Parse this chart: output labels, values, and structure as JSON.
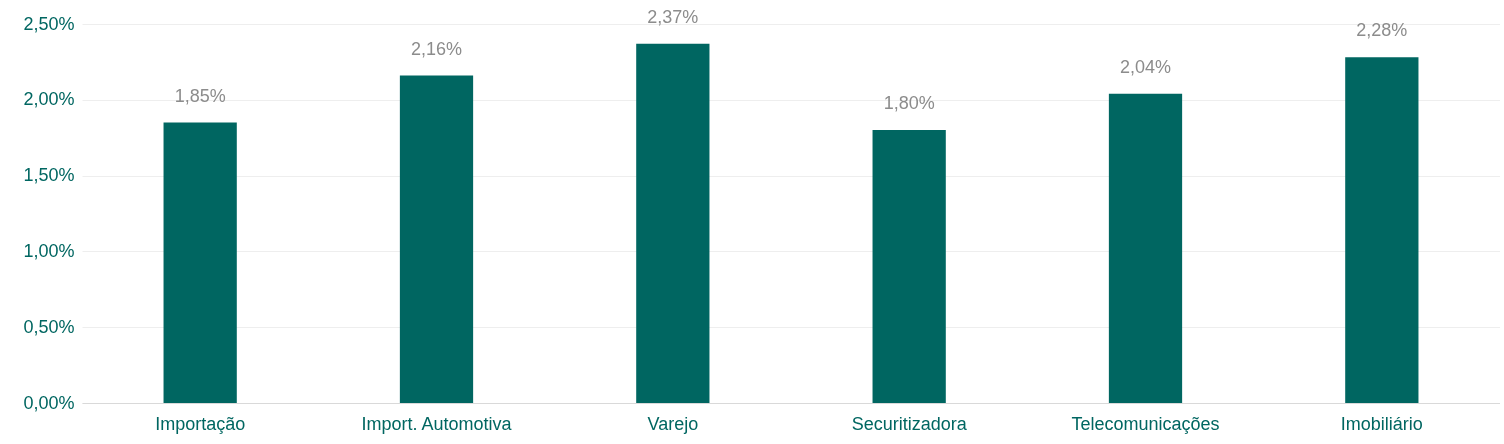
{
  "chart_data": {
    "type": "bar",
    "categories": [
      "Importação",
      "Import. Automotiva",
      "Varejo",
      "Securitizadora",
      "Telecomunicações",
      "Imobiliário"
    ],
    "values": [
      1.85,
      2.16,
      2.37,
      1.8,
      2.04,
      2.28
    ],
    "value_labels": [
      "1,85%",
      "2,16%",
      "2,37%",
      "1,80%",
      "2,04%",
      "2,28%"
    ],
    "color": "#006661",
    "ylim": [
      0,
      2.5
    ],
    "yticks": [
      {
        "value": 0,
        "label": "0,00%"
      },
      {
        "value": 0.5,
        "label": "0,50%"
      },
      {
        "value": 1,
        "label": "1,00%"
      },
      {
        "value": 1.5,
        "label": "1,50%"
      },
      {
        "value": 2,
        "label": "2,00%"
      },
      {
        "value": 2.5,
        "label": "2,50%"
      }
    ],
    "grid": "y"
  }
}
